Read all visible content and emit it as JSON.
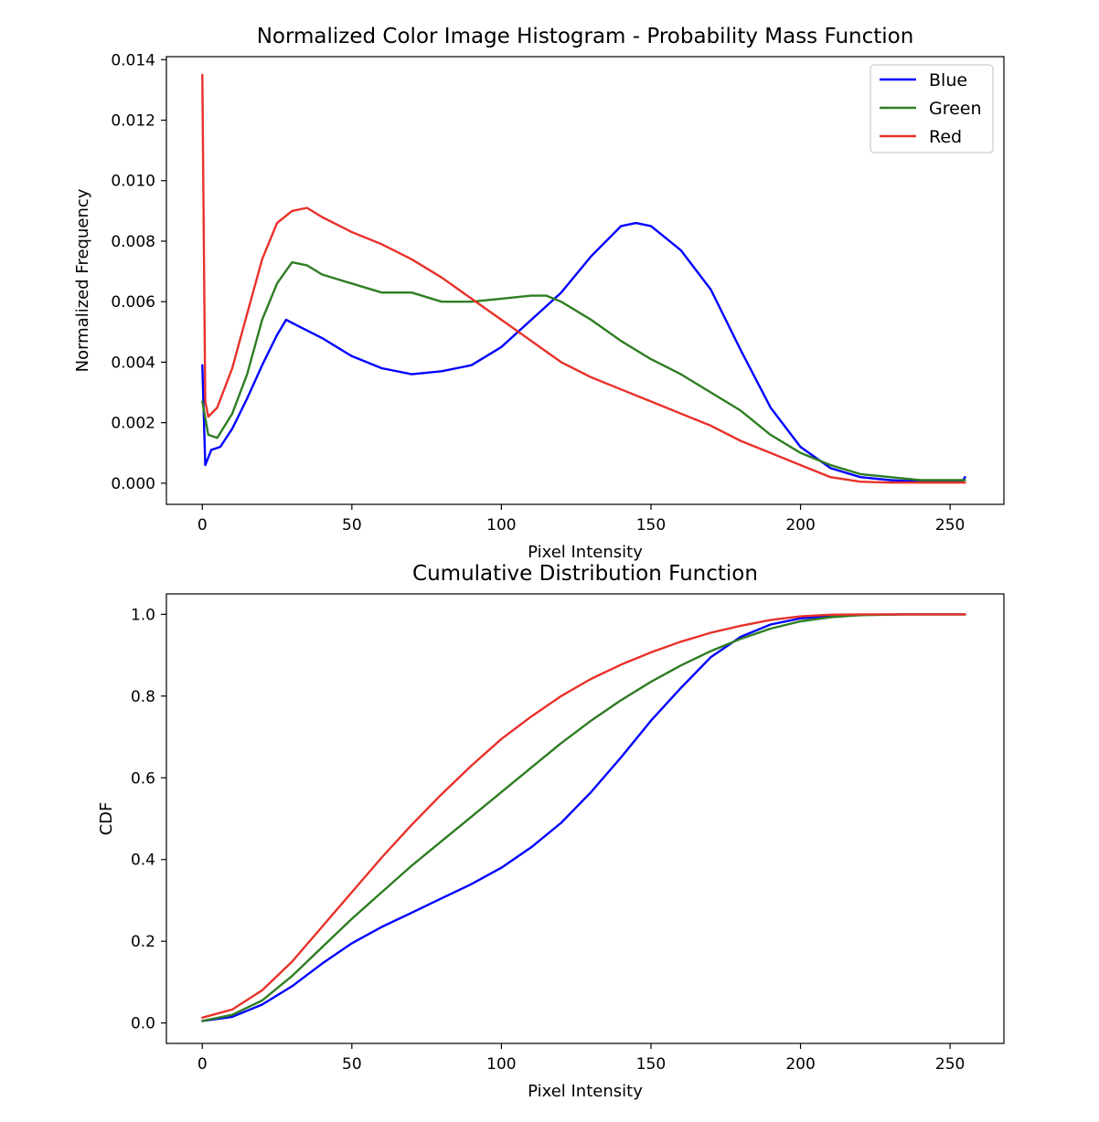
{
  "chart_data": [
    {
      "type": "line",
      "title": "Normalized Color Image Histogram - Probability Mass Function",
      "xlabel": "Pixel Intensity",
      "ylabel": "Normalized Frequency",
      "xlim": [
        -12,
        268
      ],
      "ylim": [
        -0.0007,
        0.0141
      ],
      "xticks": [
        0,
        50,
        100,
        150,
        200,
        250
      ],
      "yticks": [
        0,
        0.002,
        0.004,
        0.006,
        0.008,
        0.01,
        0.012,
        0.014
      ],
      "ytick_labels": [
        "0.000",
        "0.002",
        "0.004",
        "0.006",
        "0.008",
        "0.010",
        "0.012",
        "0.014"
      ],
      "grid": false,
      "legend": "top-right",
      "series": [
        {
          "name": "Blue",
          "color": "#0000ff",
          "points": [
            [
              0,
              0.0039
            ],
            [
              1,
              0.0006
            ],
            [
              3,
              0.0011
            ],
            [
              6,
              0.0012
            ],
            [
              10,
              0.0018
            ],
            [
              15,
              0.0028
            ],
            [
              20,
              0.0039
            ],
            [
              25,
              0.0049
            ],
            [
              28,
              0.0054
            ],
            [
              32,
              0.0052
            ],
            [
              40,
              0.0048
            ],
            [
              50,
              0.0042
            ],
            [
              60,
              0.0038
            ],
            [
              70,
              0.0036
            ],
            [
              80,
              0.0037
            ],
            [
              90,
              0.0039
            ],
            [
              100,
              0.0045
            ],
            [
              110,
              0.0054
            ],
            [
              120,
              0.0063
            ],
            [
              130,
              0.0075
            ],
            [
              140,
              0.0085
            ],
            [
              145,
              0.0086
            ],
            [
              150,
              0.0085
            ],
            [
              160,
              0.0077
            ],
            [
              170,
              0.0064
            ],
            [
              180,
              0.0044
            ],
            [
              190,
              0.0025
            ],
            [
              200,
              0.0012
            ],
            [
              210,
              0.0005
            ],
            [
              220,
              0.0002
            ],
            [
              230,
              0.0001
            ],
            [
              240,
              5e-05
            ],
            [
              254,
              5e-05
            ],
            [
              255,
              0.0002
            ]
          ]
        },
        {
          "name": "Green",
          "color": "#2e7d22",
          "points": [
            [
              0,
              0.0027
            ],
            [
              2,
              0.0016
            ],
            [
              5,
              0.0015
            ],
            [
              10,
              0.0023
            ],
            [
              15,
              0.0036
            ],
            [
              20,
              0.0054
            ],
            [
              25,
              0.0066
            ],
            [
              30,
              0.0073
            ],
            [
              35,
              0.0072
            ],
            [
              40,
              0.0069
            ],
            [
              50,
              0.0066
            ],
            [
              60,
              0.0063
            ],
            [
              70,
              0.0063
            ],
            [
              80,
              0.006
            ],
            [
              90,
              0.006
            ],
            [
              100,
              0.0061
            ],
            [
              110,
              0.0062
            ],
            [
              115,
              0.0062
            ],
            [
              120,
              0.006
            ],
            [
              130,
              0.0054
            ],
            [
              140,
              0.0047
            ],
            [
              150,
              0.0041
            ],
            [
              160,
              0.0036
            ],
            [
              170,
              0.003
            ],
            [
              180,
              0.0024
            ],
            [
              190,
              0.0016
            ],
            [
              200,
              0.001
            ],
            [
              210,
              0.0006
            ],
            [
              220,
              0.0003
            ],
            [
              230,
              0.0002
            ],
            [
              240,
              0.0001
            ],
            [
              255,
              0.0001
            ]
          ]
        },
        {
          "name": "Red",
          "color": "#e8312a",
          "points": [
            [
              0,
              0.0135
            ],
            [
              1,
              0.0027
            ],
            [
              2,
              0.0022
            ],
            [
              5,
              0.0025
            ],
            [
              10,
              0.0038
            ],
            [
              15,
              0.0056
            ],
            [
              20,
              0.0074
            ],
            [
              25,
              0.0086
            ],
            [
              30,
              0.009
            ],
            [
              35,
              0.0091
            ],
            [
              40,
              0.0088
            ],
            [
              50,
              0.0083
            ],
            [
              60,
              0.0079
            ],
            [
              70,
              0.0074
            ],
            [
              80,
              0.0068
            ],
            [
              90,
              0.0061
            ],
            [
              100,
              0.0054
            ],
            [
              110,
              0.0047
            ],
            [
              120,
              0.004
            ],
            [
              130,
              0.0035
            ],
            [
              140,
              0.0031
            ],
            [
              150,
              0.0027
            ],
            [
              160,
              0.0023
            ],
            [
              170,
              0.0019
            ],
            [
              180,
              0.0014
            ],
            [
              190,
              0.001
            ],
            [
              200,
              0.0006
            ],
            [
              210,
              0.0002
            ],
            [
              220,
              5e-05
            ],
            [
              230,
              2e-05
            ],
            [
              255,
              2e-05
            ]
          ]
        }
      ]
    },
    {
      "type": "line",
      "title": "Cumulative Distribution Function",
      "xlabel": "Pixel Intensity",
      "ylabel": "CDF",
      "xlim": [
        -12,
        268
      ],
      "ylim": [
        -0.05,
        1.05
      ],
      "xticks": [
        0,
        50,
        100,
        150,
        200,
        250
      ],
      "yticks": [
        0,
        0.2,
        0.4,
        0.6,
        0.8,
        1.0
      ],
      "ytick_labels": [
        "0.0",
        "0.2",
        "0.4",
        "0.6",
        "0.8",
        "1.0"
      ],
      "grid": false,
      "legend": "none",
      "series": [
        {
          "color": "#0000ff",
          "points": [
            [
              0,
              0.005
            ],
            [
              10,
              0.015
            ],
            [
              20,
              0.045
            ],
            [
              30,
              0.09
            ],
            [
              40,
              0.145
            ],
            [
              50,
              0.195
            ],
            [
              60,
              0.235
            ],
            [
              70,
              0.27
            ],
            [
              80,
              0.305
            ],
            [
              90,
              0.34
            ],
            [
              100,
              0.38
            ],
            [
              110,
              0.43
            ],
            [
              120,
              0.49
            ],
            [
              130,
              0.565
            ],
            [
              140,
              0.65
            ],
            [
              150,
              0.74
            ],
            [
              160,
              0.82
            ],
            [
              170,
              0.895
            ],
            [
              180,
              0.945
            ],
            [
              190,
              0.975
            ],
            [
              200,
              0.99
            ],
            [
              210,
              0.996
            ],
            [
              220,
              0.999
            ],
            [
              235,
              1.0
            ],
            [
              255,
              1.0
            ]
          ]
        },
        {
          "color": "#2e7d22",
          "points": [
            [
              0,
              0.005
            ],
            [
              10,
              0.02
            ],
            [
              20,
              0.055
            ],
            [
              30,
              0.115
            ],
            [
              40,
              0.185
            ],
            [
              50,
              0.255
            ],
            [
              60,
              0.32
            ],
            [
              70,
              0.385
            ],
            [
              80,
              0.445
            ],
            [
              90,
              0.505
            ],
            [
              100,
              0.565
            ],
            [
              110,
              0.625
            ],
            [
              120,
              0.685
            ],
            [
              130,
              0.74
            ],
            [
              140,
              0.79
            ],
            [
              150,
              0.835
            ],
            [
              160,
              0.875
            ],
            [
              170,
              0.91
            ],
            [
              180,
              0.94
            ],
            [
              190,
              0.965
            ],
            [
              200,
              0.983
            ],
            [
              210,
              0.993
            ],
            [
              220,
              0.998
            ],
            [
              235,
              1.0
            ],
            [
              255,
              1.0
            ]
          ]
        },
        {
          "color": "#e8312a",
          "points": [
            [
              0,
              0.013
            ],
            [
              10,
              0.033
            ],
            [
              20,
              0.08
            ],
            [
              30,
              0.15
            ],
            [
              40,
              0.235
            ],
            [
              50,
              0.32
            ],
            [
              60,
              0.405
            ],
            [
              70,
              0.485
            ],
            [
              80,
              0.56
            ],
            [
              90,
              0.63
            ],
            [
              100,
              0.695
            ],
            [
              110,
              0.75
            ],
            [
              120,
              0.8
            ],
            [
              130,
              0.842
            ],
            [
              140,
              0.877
            ],
            [
              150,
              0.907
            ],
            [
              160,
              0.933
            ],
            [
              170,
              0.955
            ],
            [
              180,
              0.972
            ],
            [
              190,
              0.986
            ],
            [
              200,
              0.995
            ],
            [
              210,
              0.999
            ],
            [
              220,
              1.0
            ],
            [
              255,
              1.0
            ]
          ]
        }
      ]
    }
  ]
}
